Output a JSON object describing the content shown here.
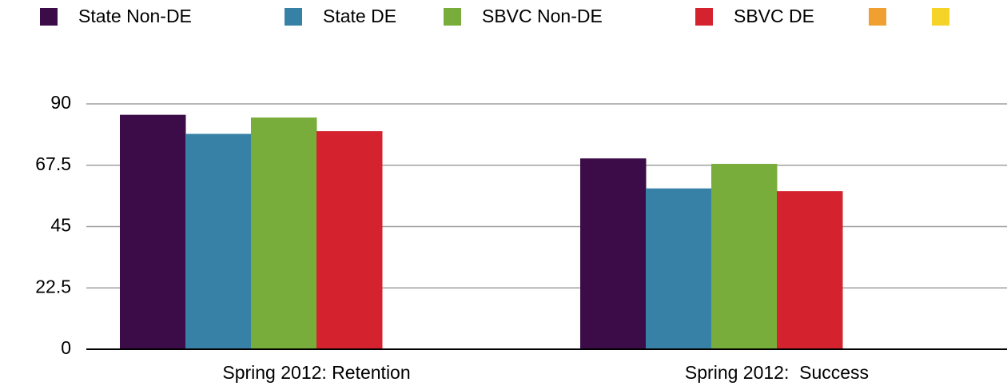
{
  "chart_data": {
    "type": "bar",
    "categories": [
      "Spring 2012: Retention",
      "Spring 2012:  Success"
    ],
    "series": [
      {
        "name": "State Non-DE",
        "color": "#3c0c48",
        "values": [
          86,
          70
        ]
      },
      {
        "name": "State DE",
        "color": "#3781a6",
        "values": [
          79,
          59
        ]
      },
      {
        "name": "SBVC Non-DE",
        "color": "#79ad3b",
        "values": [
          85,
          68
        ]
      },
      {
        "name": "SBVC DE",
        "color": "#d4232e",
        "values": [
          80,
          58
        ]
      },
      {
        "color": "#f0a030",
        "values": [
          null,
          null
        ]
      },
      {
        "color": "#f5d327",
        "values": [
          null,
          null
        ]
      }
    ],
    "ylim": [
      0,
      90
    ],
    "yticks": [
      0,
      22.5,
      45,
      67.5,
      90
    ],
    "grid": true,
    "legend": "top"
  }
}
